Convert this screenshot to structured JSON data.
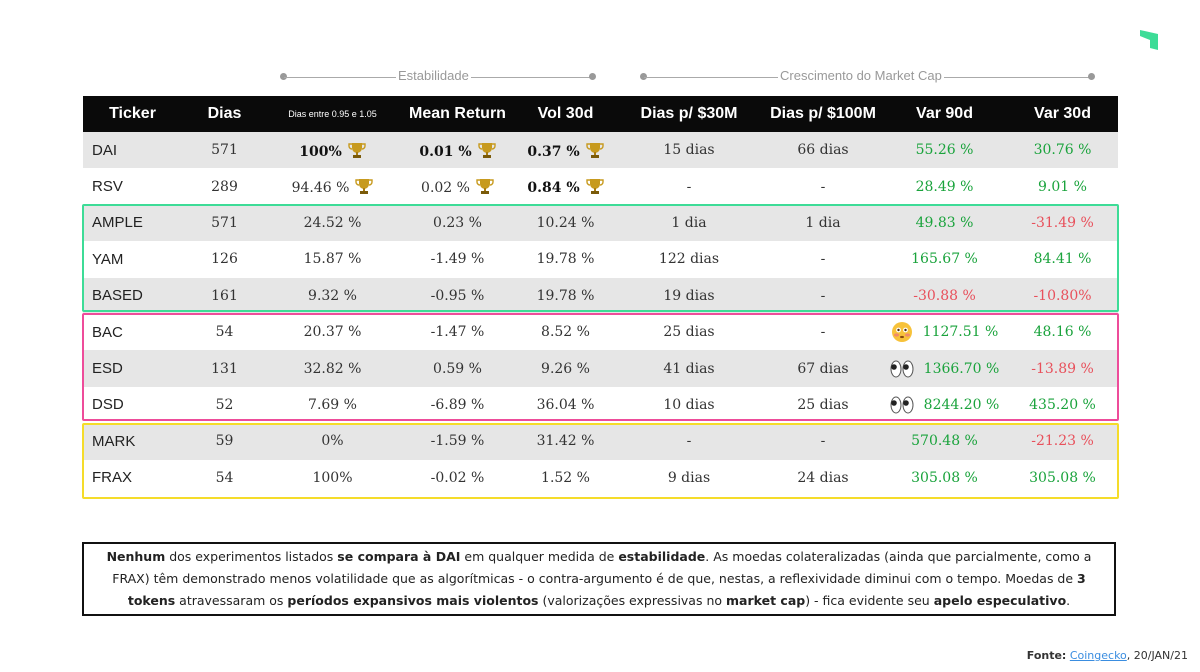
{
  "groups": {
    "estabilidade": "Estabilidade",
    "crescimento": "Crescimento do Market Cap"
  },
  "headers": [
    "Ticker",
    "Dias",
    "Dias entre 0.95 e 1.05",
    "Mean Return",
    "Vol 30d",
    "Dias p/ $30M",
    "Dias p/ $100M",
    "Var 90d",
    "Var 30d"
  ],
  "rows": [
    {
      "ticker": "DAI",
      "dias": "571",
      "range": "100%",
      "mean": "0.01 %",
      "vol": "0.37 %",
      "d30": "15 dias",
      "d100": "66 dias",
      "v90": "55.26 %",
      "v30": "30.76 %"
    },
    {
      "ticker": "RSV",
      "dias": "289",
      "range": "94.46 %",
      "mean": "0.02 %",
      "vol": "0.84 %",
      "d30": "-",
      "d100": "-",
      "v90": "28.49 %",
      "v30": "9.01 %"
    },
    {
      "ticker": "AMPLE",
      "dias": "571",
      "range": "24.52 %",
      "mean": "0.23 %",
      "vol": "10.24 %",
      "d30": "1 dia",
      "d100": "1 dia",
      "v90": "49.83 %",
      "v30": "-31.49 %"
    },
    {
      "ticker": "YAM",
      "dias": "126",
      "range": "15.87 %",
      "mean": "-1.49 %",
      "vol": "19.78 %",
      "d30": "122 dias",
      "d100": "-",
      "v90": "165.67 %",
      "v30": "84.41 %"
    },
    {
      "ticker": "BASED",
      "dias": "161",
      "range": "9.32 %",
      "mean": "-0.95 %",
      "vol": "19.78 %",
      "d30": "19 dias",
      "d100": "-",
      "v90": "-30.88 %",
      "v30": "-10.80%"
    },
    {
      "ticker": "BAC",
      "dias": "54",
      "range": "20.37 %",
      "mean": "-1.47 %",
      "vol": "8.52 %",
      "d30": "25 dias",
      "d100": "-",
      "v90": "1127.51 %",
      "v30": "48.16 %"
    },
    {
      "ticker": "ESD",
      "dias": "131",
      "range": "32.82 %",
      "mean": "0.59 %",
      "vol": "9.26 %",
      "d30": "41 dias",
      "d100": "67 dias",
      "v90": "1366.70 %",
      "v30": "-13.89 %"
    },
    {
      "ticker": "DSD",
      "dias": "52",
      "range": "7.69 %",
      "mean": "-6.89 %",
      "vol": "36.04 %",
      "d30": "10 dias",
      "d100": "25 dias",
      "v90": "8244.20 %",
      "v30": "435.20 %"
    },
    {
      "ticker": "MARK",
      "dias": "59",
      "range": "0%",
      "mean": "-1.59 %",
      "vol": "31.42 %",
      "d30": "-",
      "d100": "-",
      "v90": "570.48 %",
      "v30": "-21.23 %"
    },
    {
      "ticker": "FRAX",
      "dias": "54",
      "range": "100%",
      "mean": "-0.02 %",
      "vol": "1.52 %",
      "d30": "9 dias",
      "d100": "24 dias",
      "v90": "305.08 %",
      "v30": "305.08 %"
    }
  ],
  "note": {
    "p1": "Nenhum",
    "p2": " dos experimentos listados ",
    "p3": "se compara à DAI",
    "p4": " em qualquer medida de ",
    "p5": "estabilidade",
    "p6": ". As moedas colateralizadas (ainda que parcialmente, como a FRAX) têm demonstrado menos volatilidade que as algorítmicas - o contra-argumento é de que, nestas, a reflexividade diminui com o tempo. Moedas de ",
    "p7": "3 tokens",
    "p8": " atravessaram os ",
    "p9": "períodos expansivos mais violentos",
    "p10": " (valorizações expressivas no ",
    "p11": "market cap",
    "p12": ") - fica evidente seu ",
    "p13": "apelo especulativo",
    "p14": "."
  },
  "source": {
    "label": "Fonte:",
    "link": "Coingecko",
    "date": ", 20/JAN/21"
  },
  "colors": {
    "header_bg": "#0a0a0a",
    "positive": "#1aa33c",
    "negative": "#e8505b",
    "box_green": "#3ddc97",
    "box_pink": "#ee4c9a",
    "box_yellow": "#f5dc2a",
    "logo": "#3ddc97"
  }
}
